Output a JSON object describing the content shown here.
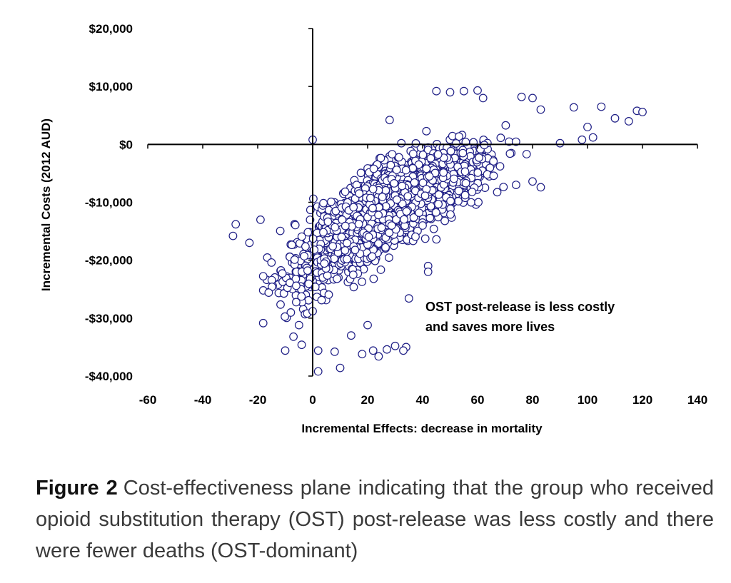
{
  "chart_data": {
    "type": "scatter",
    "xlabel": "Incremental Effects:  decrease in mortality",
    "ylabel": "Incremental Costs (2012 AUD)",
    "xlim": [
      -60,
      140
    ],
    "ylim": [
      -40000,
      20000
    ],
    "x_ticks": [
      -60,
      -40,
      -20,
      0,
      20,
      40,
      60,
      80,
      100,
      120,
      140
    ],
    "y_ticks": [
      20000,
      10000,
      0,
      -10000,
      -20000,
      -30000,
      -40000
    ],
    "x_tick_labels": [
      "-60",
      "-40",
      "-20",
      "0",
      "20",
      "40",
      "60",
      "80",
      "100",
      "120",
      "140"
    ],
    "y_tick_labels": [
      "$20,000",
      "$10,000",
      "$0",
      "-$10,000",
      "-$20,000",
      "-$30,000",
      "-$40,000"
    ],
    "marker": "open-circle",
    "marker_color": "#1f1f86",
    "annotation": [
      "OST post-release is less costly",
      "and saves more lives"
    ],
    "points": [
      [
        -28,
        -13800
      ],
      [
        -29,
        -15800
      ],
      [
        -23,
        -17000
      ],
      [
        -19,
        -13000
      ],
      [
        -18,
        -25200
      ],
      [
        -16,
        -25600
      ],
      [
        -15,
        -20400
      ],
      [
        -10,
        -35600
      ],
      [
        -7,
        -33200
      ],
      [
        -6,
        -24400
      ],
      [
        -5,
        -31200
      ],
      [
        -4,
        -34600
      ],
      [
        -2,
        -29200
      ],
      [
        0,
        -28800
      ],
      [
        2,
        -35600
      ],
      [
        2,
        -39200
      ],
      [
        8,
        -35800
      ],
      [
        10,
        -38600
      ],
      [
        14,
        -33000
      ],
      [
        18,
        -36200
      ],
      [
        20,
        -31200
      ],
      [
        22,
        -35600
      ],
      [
        24,
        -36600
      ],
      [
        27,
        -35400
      ],
      [
        30,
        -34800
      ],
      [
        34,
        -35000
      ],
      [
        33,
        -35600
      ],
      [
        35,
        -26600
      ],
      [
        42,
        -21000
      ],
      [
        42,
        -22000
      ],
      [
        0,
        800
      ],
      [
        28,
        4200
      ],
      [
        45,
        9200
      ],
      [
        50,
        9000
      ],
      [
        55,
        9200
      ],
      [
        60,
        9300
      ],
      [
        62,
        8000
      ],
      [
        76,
        8200
      ],
      [
        80,
        8000
      ],
      [
        83,
        6000
      ],
      [
        95,
        6400
      ],
      [
        105,
        6500
      ],
      [
        110,
        4500
      ],
      [
        115,
        4000
      ],
      [
        118,
        5800
      ],
      [
        120,
        5600
      ],
      [
        100,
        3000
      ],
      [
        102,
        1200
      ],
      [
        98,
        800
      ],
      [
        90,
        200
      ],
      [
        80,
        -6400
      ],
      [
        83,
        -7400
      ],
      [
        74,
        -7000
      ],
      [
        58,
        -8200
      ],
      [
        45,
        -16400
      ],
      [
        40,
        -14000
      ]
    ]
  },
  "caption": {
    "label": "Figure 2",
    "text": "Cost-effectiveness plane indicating that the group who received opioid substitution therapy (OST) post-release was less costly and there were fewer deaths (OST-dominant)"
  }
}
